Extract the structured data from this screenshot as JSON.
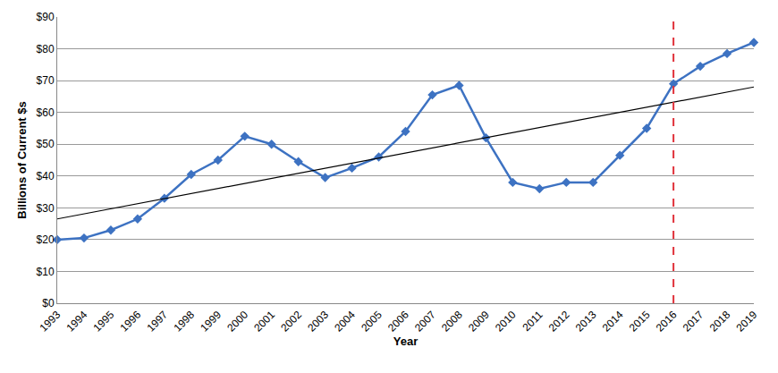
{
  "chart_data": {
    "type": "line",
    "xlabel": "Year",
    "ylabel": "Billions of Current $s",
    "x": [
      1993,
      1994,
      1995,
      1996,
      1997,
      1998,
      1999,
      2000,
      2001,
      2002,
      2003,
      2004,
      2005,
      2006,
      2007,
      2008,
      2009,
      2010,
      2011,
      2012,
      2013,
      2014,
      2015,
      2016,
      2017,
      2018,
      2019
    ],
    "series": [
      {
        "color": "#3d72c2",
        "marker": "diamond",
        "line_style": "solid",
        "values": [
          20.0,
          20.5,
          23.0,
          26.5,
          33.0,
          40.5,
          45.0,
          52.5,
          50.0,
          44.5,
          39.5,
          42.5,
          46.0,
          54.0,
          65.5,
          68.5,
          52.0,
          38.0,
          36.0,
          38.0,
          38.0,
          46.5,
          55.0,
          69.0,
          74.5,
          78.5,
          82.0
        ]
      },
      {
        "color": "#000000",
        "marker": "none",
        "line_style": "solid",
        "x": [
          1993,
          2019
        ],
        "values": [
          26.5,
          68.0
        ]
      }
    ],
    "reference_lines": [
      {
        "x": 2016,
        "color": "#e0313a",
        "line_style": "dashed"
      }
    ],
    "xlim": [
      1993,
      2019
    ],
    "xticks": [
      1993,
      1994,
      1995,
      1996,
      1997,
      1998,
      1999,
      2000,
      2001,
      2002,
      2003,
      2004,
      2005,
      2006,
      2007,
      2008,
      2009,
      2010,
      2011,
      2012,
      2013,
      2014,
      2015,
      2016,
      2017,
      2018,
      2019
    ],
    "ylim": [
      0,
      90
    ],
    "yticks": [
      {
        "value": 0,
        "label": "$0"
      },
      {
        "value": 10,
        "label": "$10"
      },
      {
        "value": 20,
        "label": "$20"
      },
      {
        "value": 30,
        "label": "$30"
      },
      {
        "value": 40,
        "label": "$40"
      },
      {
        "value": 50,
        "label": "$50"
      },
      {
        "value": 60,
        "label": "$60"
      },
      {
        "value": 70,
        "label": "$70"
      },
      {
        "value": 80,
        "label": "$80"
      },
      {
        "value": 90,
        "label": "$90"
      }
    ],
    "grid": true
  }
}
